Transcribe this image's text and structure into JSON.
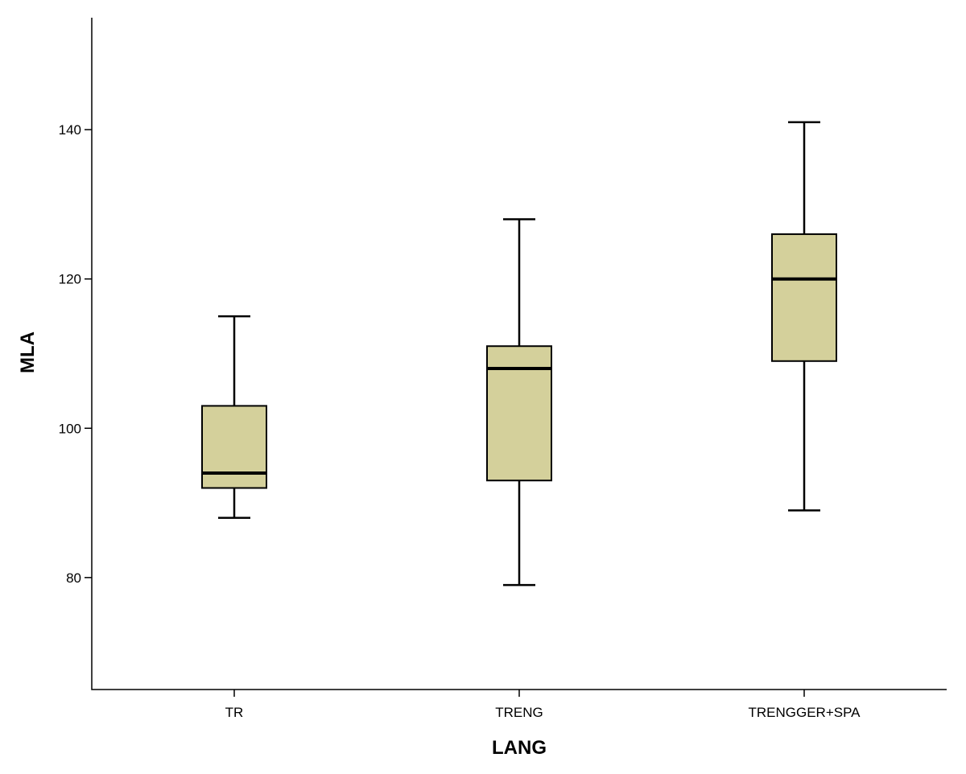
{
  "chart_data": {
    "type": "boxplot",
    "title": "",
    "xlabel": "LANG",
    "ylabel": "MLA",
    "ylim": [
      65,
      155
    ],
    "y_ticks": [
      80,
      100,
      120,
      140
    ],
    "grid": false,
    "legend": "none",
    "box_color": "#D4D09B",
    "categories": [
      "TR",
      "TRENG",
      "TRENGGER+SPA"
    ],
    "boxes": [
      {
        "category": "TR",
        "min": 88,
        "q1": 92,
        "median": 94,
        "q3": 103,
        "max": 115
      },
      {
        "category": "TRENG",
        "min": 79,
        "q1": 93,
        "median": 108,
        "q3": 111,
        "max": 128
      },
      {
        "category": "TRENGGER+SPA",
        "min": 89,
        "q1": 109,
        "median": 120,
        "q3": 126,
        "max": 141
      }
    ]
  }
}
